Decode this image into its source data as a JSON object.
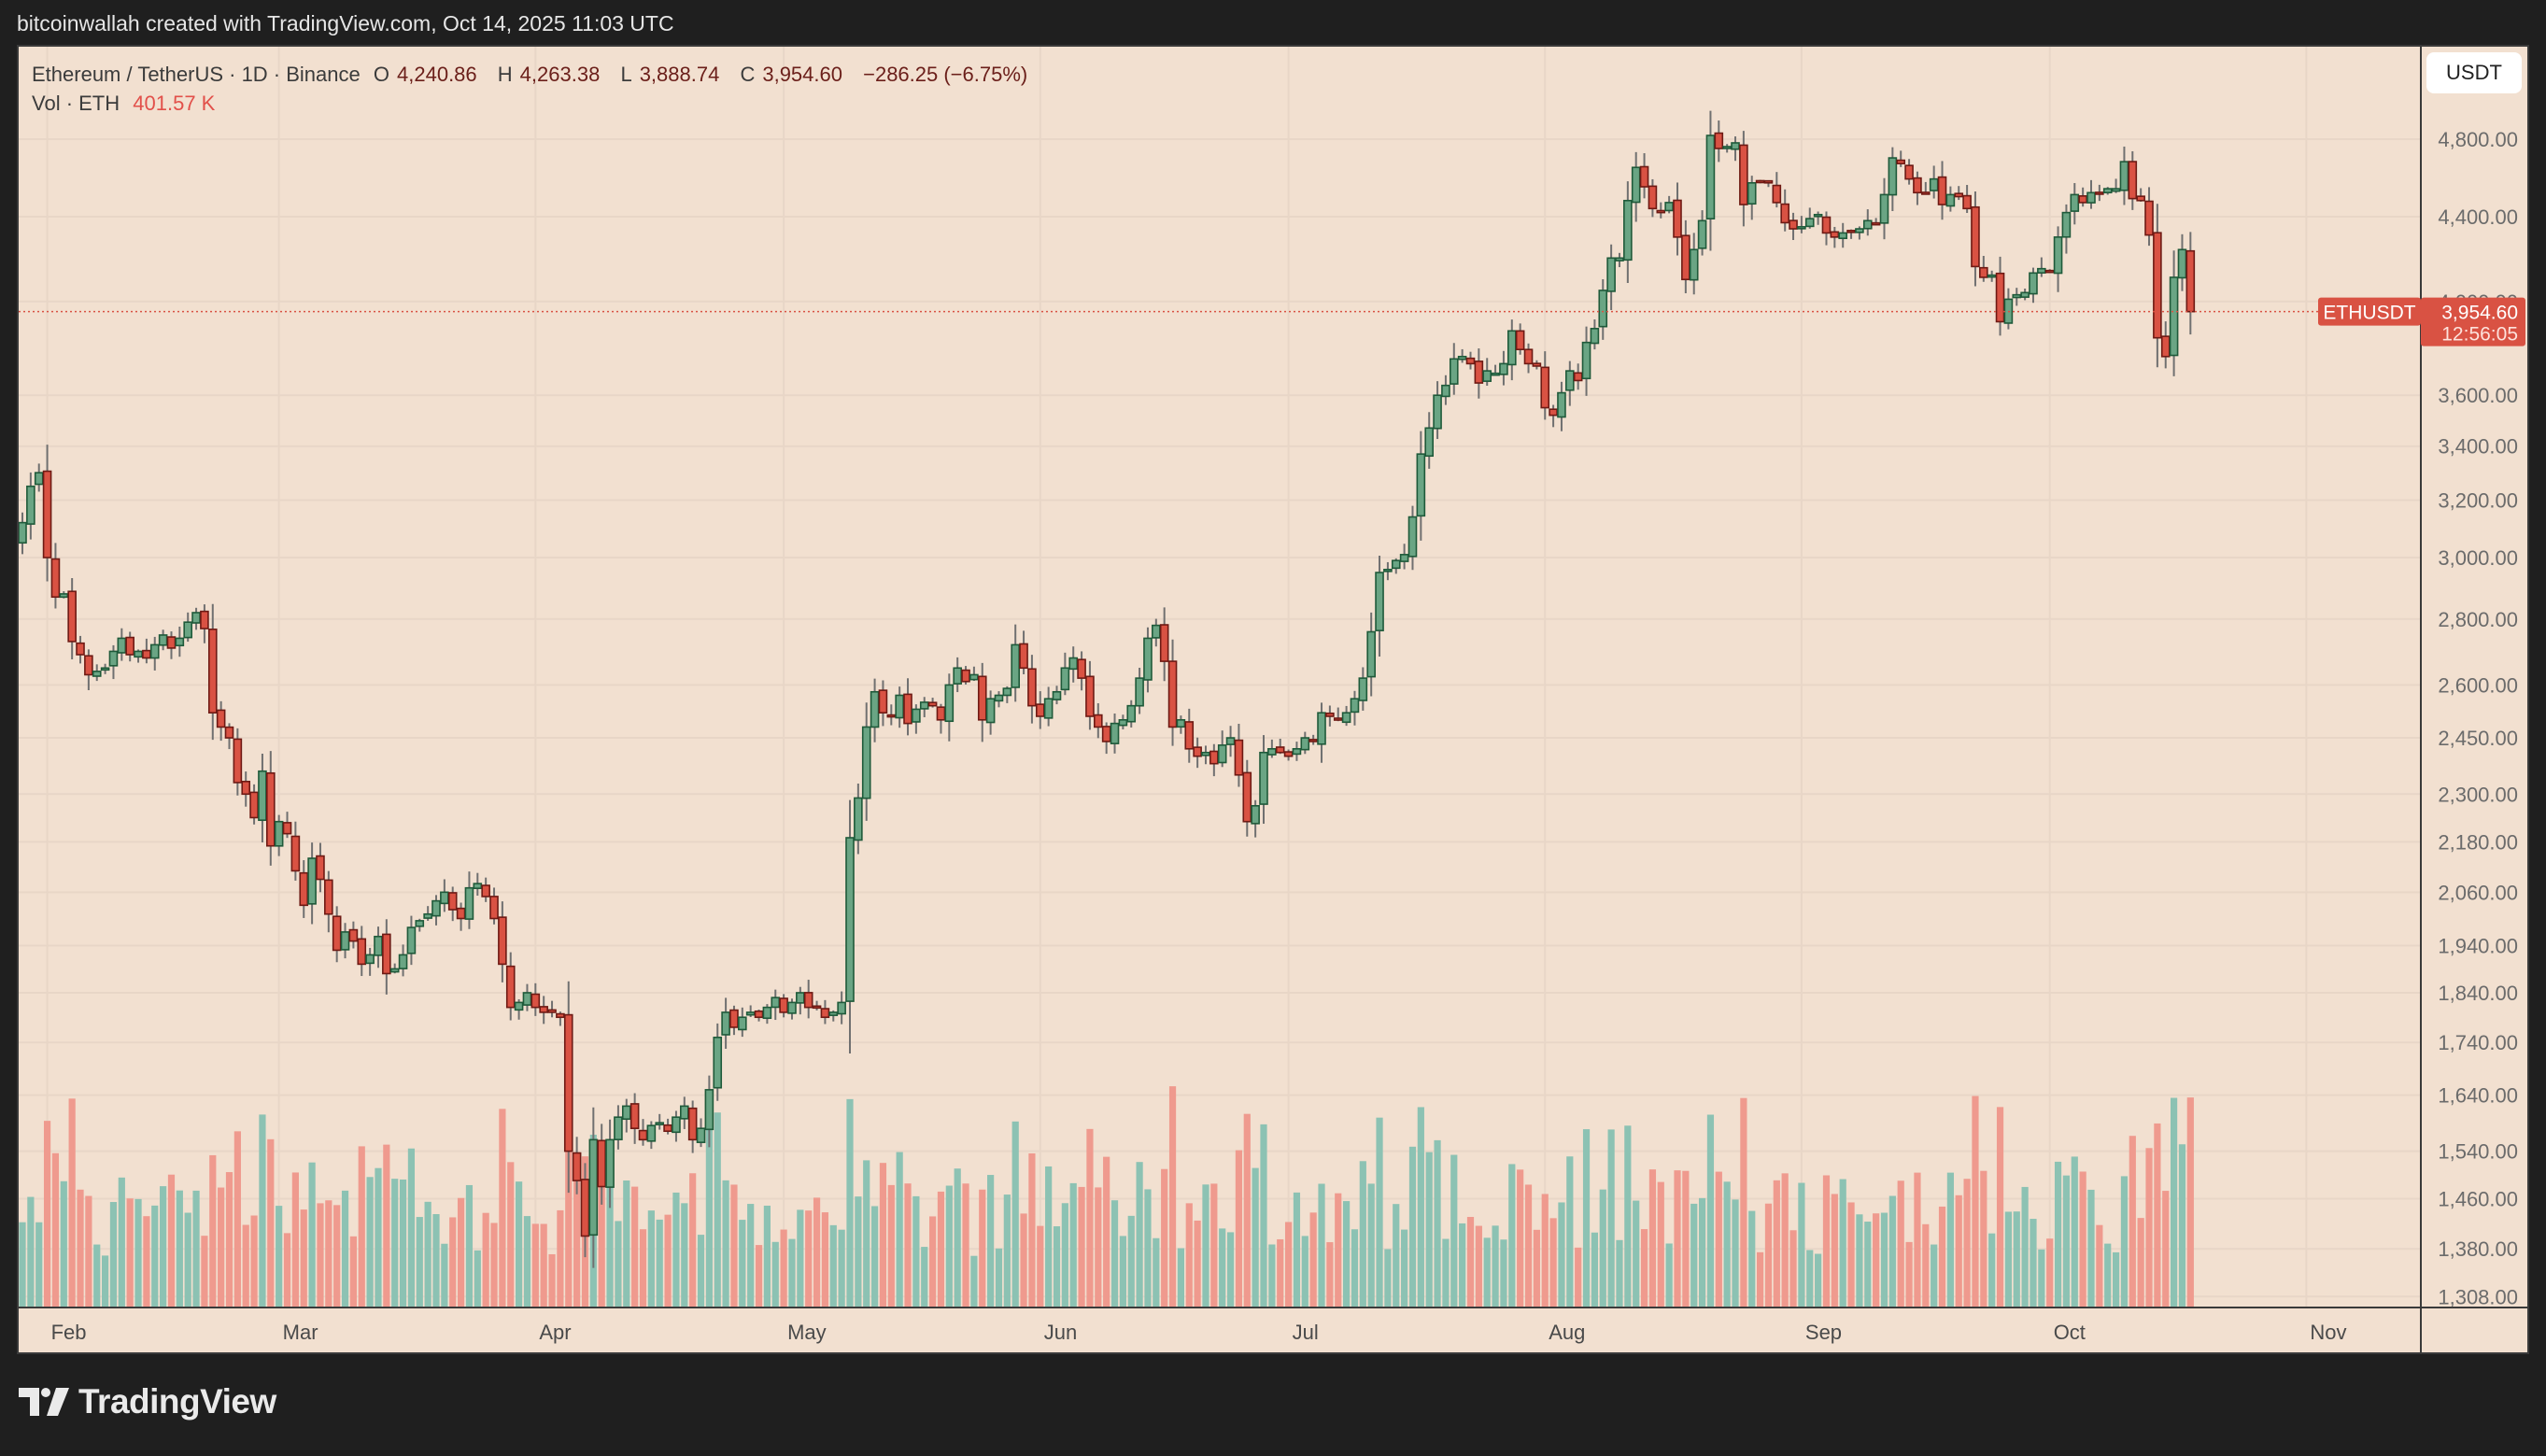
{
  "credit": "bitcoinwallah created with TradingView.com, Oct 14, 2025 11:03 UTC",
  "legend": {
    "symbol": "Ethereum / TetherUS · 1D · Binance",
    "open_label": "O",
    "open": "4,240.86",
    "high_label": "H",
    "high": "4,263.38",
    "low_label": "L",
    "low": "3,888.74",
    "close_label": "C",
    "close": "3,954.60",
    "change": "−286.25 (−6.75%)",
    "vol_label": "Vol · ETH",
    "vol_value": "401.57 K"
  },
  "currency_button": "USDT",
  "last_price": {
    "ticker": "ETHUSDT",
    "price": "3,954.60",
    "countdown": "12:56:05"
  },
  "logo": "TradingView",
  "colors": {
    "background": "#f2e0d0",
    "up": "#6aa584",
    "up_border": "#1f5a3a",
    "down": "#d95243",
    "down_border": "#6e1a14",
    "vol_up": "#8cc2b3",
    "vol_down": "#ef9a8e",
    "grid": "#e8d6c7",
    "wick": "#707070",
    "price_line": "#d95243"
  },
  "chart_data": {
    "type": "candlestick",
    "title": "Ethereum / TetherUS · 1D · Binance",
    "xlabel": "",
    "ylabel": "USDT",
    "y_scale": "log",
    "ylim": [
      1290,
      5000
    ],
    "y_ticks": [
      4800,
      4400,
      4000,
      3600,
      3400,
      3200,
      3000,
      2800,
      2600,
      2450,
      2300,
      2180,
      2060,
      1940,
      1840,
      1740,
      1640,
      1540,
      1460,
      1380,
      1308
    ],
    "y_tick_labels": [
      "4,800.00",
      "4,400.00",
      "4,000.00",
      "3,600.00",
      "3,400.00",
      "3,200.00",
      "3,000.00",
      "2,800.00",
      "2,600.00",
      "2,450.00",
      "2,300.00",
      "2,180.00",
      "2,060.00",
      "1,940.00",
      "1,840.00",
      "1,740.00",
      "1,640.00",
      "1,540.00",
      "1,460.00",
      "1,380.00",
      "1,308.00"
    ],
    "x_tick_labels": [
      "Feb",
      "Mar",
      "Apr",
      "May",
      "Jun",
      "Jul",
      "Aug",
      "Sep",
      "Oct",
      "Nov"
    ],
    "x_tick_day_index": [
      3,
      31,
      62,
      92,
      123,
      153,
      184,
      215,
      245,
      276
    ],
    "start_date": "2025-01-29",
    "last_close": 3954.6,
    "grid": true,
    "legend_position": "top-left",
    "closes": [
      3120,
      3250,
      3300,
      3000,
      2870,
      2880,
      2730,
      2690,
      2630,
      2640,
      2650,
      2700,
      2740,
      2690,
      2700,
      2680,
      2720,
      2750,
      2710,
      2740,
      2790,
      2820,
      2770,
      2520,
      2480,
      2450,
      2330,
      2300,
      2240,
      2360,
      2170,
      2230,
      2200,
      2110,
      2030,
      2140,
      2090,
      2010,
      1930,
      1970,
      1950,
      1900,
      1920,
      1960,
      1880,
      1890,
      1920,
      1980,
      1995,
      2010,
      2040,
      2060,
      2020,
      2000,
      2070,
      2080,
      2050,
      2000,
      1900,
      1810,
      1820,
      1840,
      1810,
      1800,
      1800,
      1790,
      1540,
      1490,
      1400,
      1560,
      1480,
      1560,
      1600,
      1620,
      1580,
      1560,
      1585,
      1590,
      1575,
      1600,
      1620,
      1560,
      1580,
      1650,
      1750,
      1800,
      1770,
      1790,
      1800,
      1790,
      1810,
      1830,
      1800,
      1820,
      1840,
      1810,
      1810,
      1790,
      1800,
      1820,
      2190,
      2290,
      2480,
      2580,
      2520,
      2510,
      2570,
      2490,
      2530,
      2550,
      2540,
      2500,
      2600,
      2650,
      2610,
      2630,
      2500,
      2560,
      2570,
      2590,
      2720,
      2650,
      2540,
      2510,
      2560,
      2580,
      2650,
      2680,
      2620,
      2510,
      2480,
      2440,
      2490,
      2500,
      2540,
      2620,
      2740,
      2780,
      2670,
      2480,
      2500,
      2420,
      2400,
      2410,
      2380,
      2430,
      2450,
      2350,
      2230,
      2270,
      2410,
      2420,
      2410,
      2400,
      2420,
      2450,
      2440,
      2520,
      2510,
      2500,
      2520,
      2560,
      2620,
      2760,
      2950,
      2960,
      2990,
      3010,
      3140,
      3370,
      3470,
      3600,
      3640,
      3750,
      3760,
      3730,
      3650,
      3700,
      3690,
      3730,
      3870,
      3790,
      3730,
      3720,
      3550,
      3520,
      3610,
      3700,
      3660,
      3820,
      3880,
      4050,
      4200,
      4200,
      4480,
      4650,
      4550,
      4440,
      4420,
      4470,
      4300,
      4100,
      4240,
      4380,
      4820,
      4750,
      4760,
      4780,
      4460,
      4570,
      4580,
      4570,
      4470,
      4370,
      4340,
      4350,
      4390,
      4410,
      4320,
      4300,
      4320,
      4330,
      4340,
      4380,
      4360,
      4510,
      4700,
      4670,
      4590,
      4520,
      4520,
      4590,
      4460,
      4510,
      4500,
      4440,
      4160,
      4110,
      4120,
      3910,
      4010,
      4030,
      4040,
      4130,
      4150,
      4140,
      4300,
      4420,
      4510,
      4470,
      4520,
      4520,
      4540,
      4540,
      4680,
      4490,
      4480,
      4310,
      3840,
      3760,
      4110,
      4240,
      3954.6
    ]
  }
}
